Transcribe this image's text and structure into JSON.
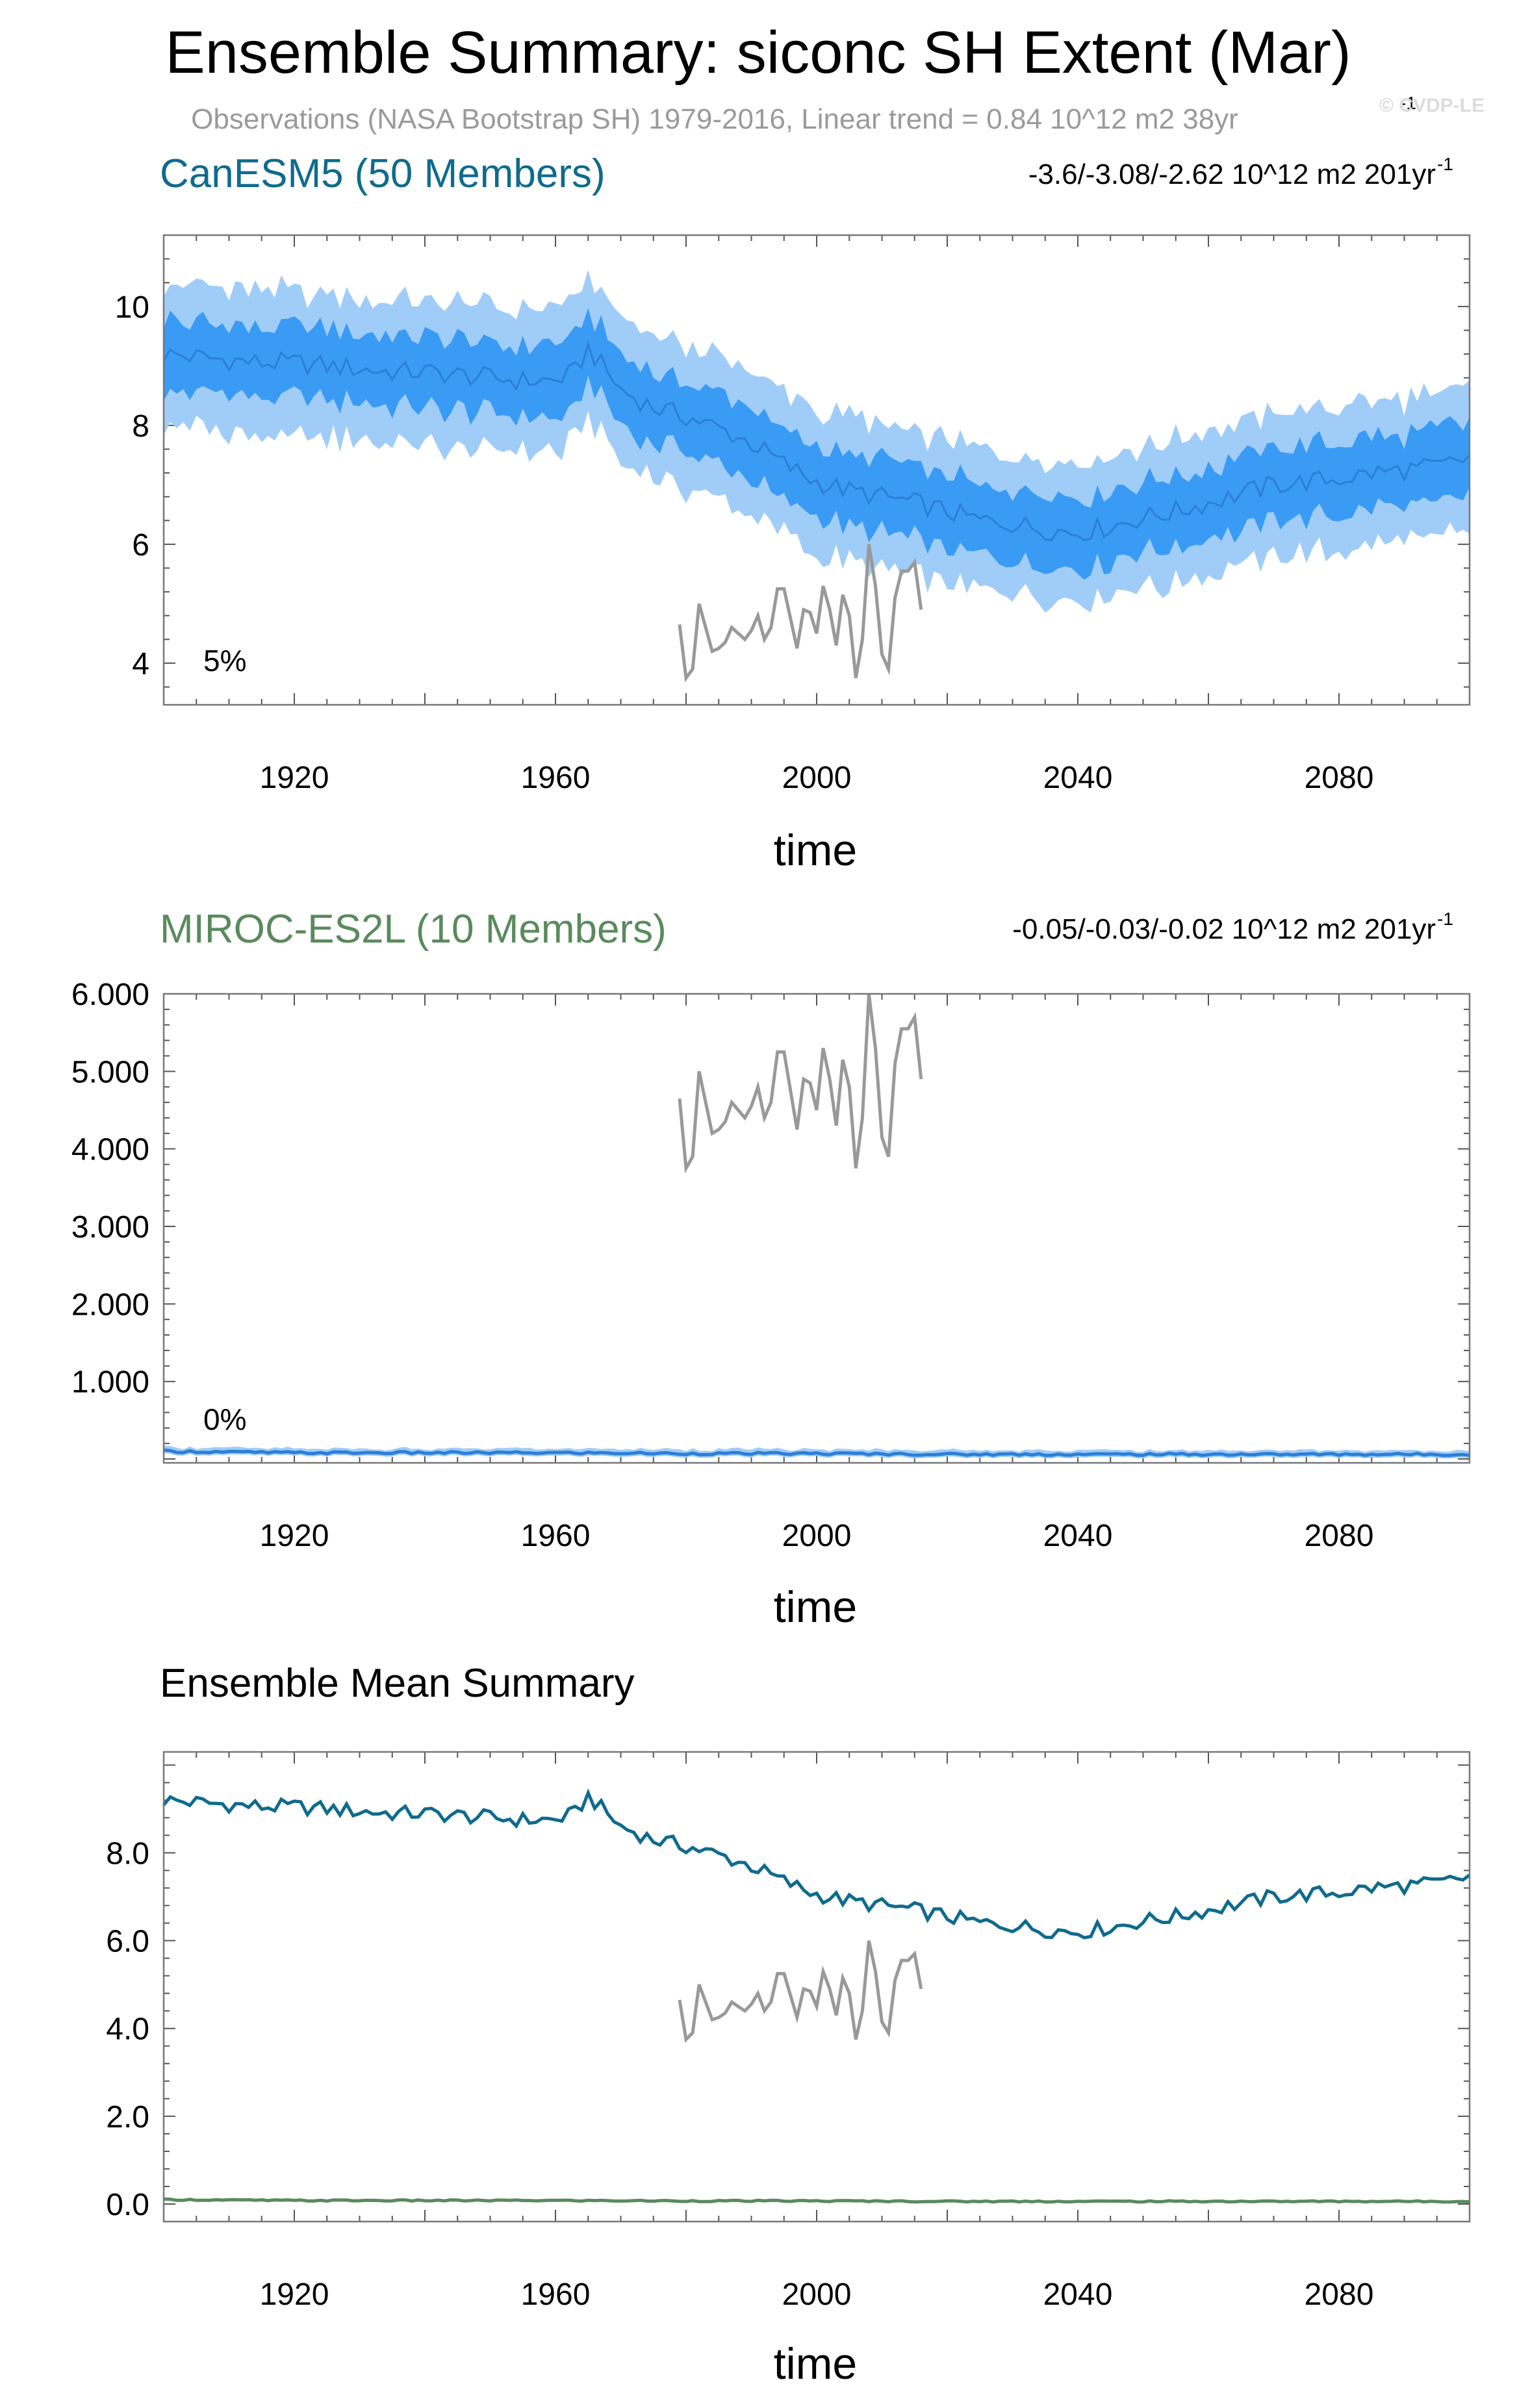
{
  "figure": {
    "title": "Ensemble Summary: siconc SH Extent (Mar)",
    "subtitle": "Observations (NASA Bootstrap SH) 1979-2016, Linear trend = 0.84 10^12 m2 38yr",
    "subtitle_sup": "-1",
    "watermark": "© CVDP-LE"
  },
  "colors": {
    "canesm5": "#0f6b8c",
    "miroc": "#5a8a5c",
    "band_inner": "#3a9bf5",
    "band_outer": "#a0cdf8",
    "member_line": "#2c7fd6",
    "obs": "#999999"
  },
  "chart_data": [
    {
      "type": "area",
      "panel": "CanESM5",
      "model_label": "CanESM5 (50 Members)",
      "trend_text": "-3.6/-3.08/-2.62 10^12 m2 201yr",
      "trend_sup": "-1",
      "percent_label": "5%",
      "xlabel": "time",
      "ylabel": "",
      "xlim": [
        1900,
        2100
      ],
      "ylim": [
        3.3,
        11.2
      ],
      "yticks": [
        4,
        6,
        8,
        10
      ],
      "ytick_labels": [
        "4",
        "6",
        "8",
        "10"
      ],
      "xticks": [
        1920,
        1960,
        2000,
        2040,
        2080
      ],
      "xtick_labels": [
        "1920",
        "1960",
        "2000",
        "2040",
        "2080"
      ],
      "grid": false,
      "series": [
        {
          "name": "",
          "kind": "ensemble_mean"
        },
        {
          "name": "",
          "kind": "observations"
        }
      ]
    },
    {
      "type": "area",
      "panel": "MIROC-ES2L",
      "model_label": "MIROC-ES2L (10 Members)",
      "trend_text": "-0.05/-0.03/-0.02 10^12 m2 201yr",
      "trend_sup": "-1",
      "percent_label": "0%",
      "xlabel": "time",
      "ylabel": "",
      "xlim": [
        1900,
        2100
      ],
      "ylim": [
        -0.05,
        6.0
      ],
      "yticks": [
        1,
        2,
        3,
        4,
        5,
        6
      ],
      "ytick_labels": [
        "1.000",
        "2.000",
        "3.000",
        "4.000",
        "5.000",
        "6.000"
      ],
      "xticks": [
        1920,
        1960,
        2000,
        2040,
        2080
      ],
      "xtick_labels": [
        "1920",
        "1960",
        "2000",
        "2040",
        "2080"
      ],
      "grid": false,
      "series": [
        {
          "name": "",
          "kind": "ensemble_mean"
        },
        {
          "name": "",
          "kind": "observations"
        }
      ]
    },
    {
      "type": "line",
      "panel": "Ensemble Mean Summary",
      "panel_title": "Ensemble Mean Summary",
      "xlabel": "time",
      "ylabel": "",
      "xlim": [
        1900,
        2100
      ],
      "ylim": [
        -0.4,
        10.3
      ],
      "yticks": [
        0,
        2,
        4,
        6,
        8
      ],
      "ytick_labels": [
        "0.0",
        "2.0",
        "4.0",
        "6.0",
        "8.0"
      ],
      "xticks": [
        1920,
        1960,
        2000,
        2040,
        2080
      ],
      "xtick_labels": [
        "1920",
        "1960",
        "2000",
        "2040",
        "2080"
      ],
      "grid": false,
      "series": [
        {
          "name": "",
          "color_key": "canesm5"
        },
        {
          "name": "",
          "color_key": "miroc"
        },
        {
          "name": "",
          "color_key": "obs"
        }
      ]
    }
  ],
  "series_data": {
    "canesm5_mean": {
      "x": [
        1900,
        1905,
        1910,
        1915,
        1920,
        1925,
        1930,
        1935,
        1940,
        1945,
        1950,
        1955,
        1960,
        1963,
        1965,
        1970,
        1975,
        1980,
        1985,
        1990,
        1995,
        2000,
        2005,
        2010,
        2015,
        2020,
        2025,
        2030,
        2035,
        2040,
        2045,
        2050,
        2055,
        2060,
        2065,
        2070,
        2075,
        2080,
        2085,
        2090,
        2095,
        2100
      ],
      "y": [
        9.2,
        9.15,
        9.1,
        9.05,
        9.05,
        9.0,
        8.95,
        8.9,
        8.9,
        8.85,
        8.8,
        8.75,
        8.75,
        8.9,
        9.3,
        8.6,
        8.3,
        8.15,
        7.95,
        7.7,
        7.35,
        7.05,
        6.9,
        6.8,
        6.7,
        6.55,
        6.4,
        6.35,
        6.25,
        6.2,
        6.3,
        6.45,
        6.55,
        6.7,
        6.85,
        7.0,
        7.05,
        7.1,
        7.2,
        7.25,
        7.3,
        7.45
      ]
    },
    "canesm5_inner_halfwidth": 0.6,
    "canesm5_outer_halfwidth": 1.2,
    "miroc_mean": {
      "x": [
        1900,
        1920,
        1940,
        1960,
        1980,
        2000,
        2020,
        2040,
        2060,
        2080,
        2100
      ],
      "y": [
        0.1,
        0.08,
        0.08,
        0.08,
        0.07,
        0.07,
        0.06,
        0.06,
        0.06,
        0.06,
        0.06
      ]
    },
    "observations": {
      "x": [
        1979,
        1980,
        1981,
        1982,
        1983,
        1984,
        1985,
        1986,
        1987,
        1988,
        1989,
        1990,
        1991,
        1992,
        1993,
        1994,
        1995,
        1996,
        1997,
        1998,
        1999,
        2000,
        2001,
        2002,
        2003,
        2004,
        2005,
        2006,
        2007,
        2008,
        2009,
        2010,
        2011,
        2012,
        2013,
        2014,
        2015,
        2016
      ],
      "y": [
        4.65,
        3.75,
        3.9,
        5.0,
        4.6,
        4.2,
        4.25,
        4.35,
        4.6,
        4.5,
        4.4,
        4.55,
        4.8,
        4.4,
        4.6,
        5.25,
        5.25,
        4.75,
        4.25,
        4.9,
        4.85,
        4.5,
        5.3,
        4.9,
        4.3,
        5.15,
        4.8,
        3.75,
        4.4,
        6.0,
        5.3,
        4.15,
        3.9,
        5.1,
        5.55,
        5.55,
        5.7,
        4.9
      ]
    }
  }
}
